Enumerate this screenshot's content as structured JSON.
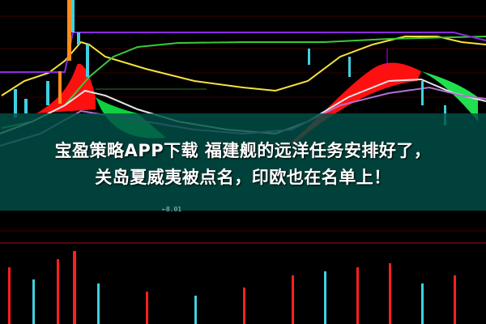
{
  "headline": {
    "line1": "宝盈策略APP下载 福建舰的远洋任务安排好了，",
    "line2": "关岛夏威夷被点名，印欧也在名单上！"
  },
  "chart_labels": {
    "price_marker": "←8.01"
  },
  "colors": {
    "background": "#000000",
    "banner": "#005048",
    "up_fill": "#ff0000",
    "down_fill": "#00e040",
    "ma_yellow": "#f5e33a",
    "ma_green": "#3bc83b",
    "ma_purple": "#8a2be2",
    "candle_cyan": "#40d0e0"
  }
}
